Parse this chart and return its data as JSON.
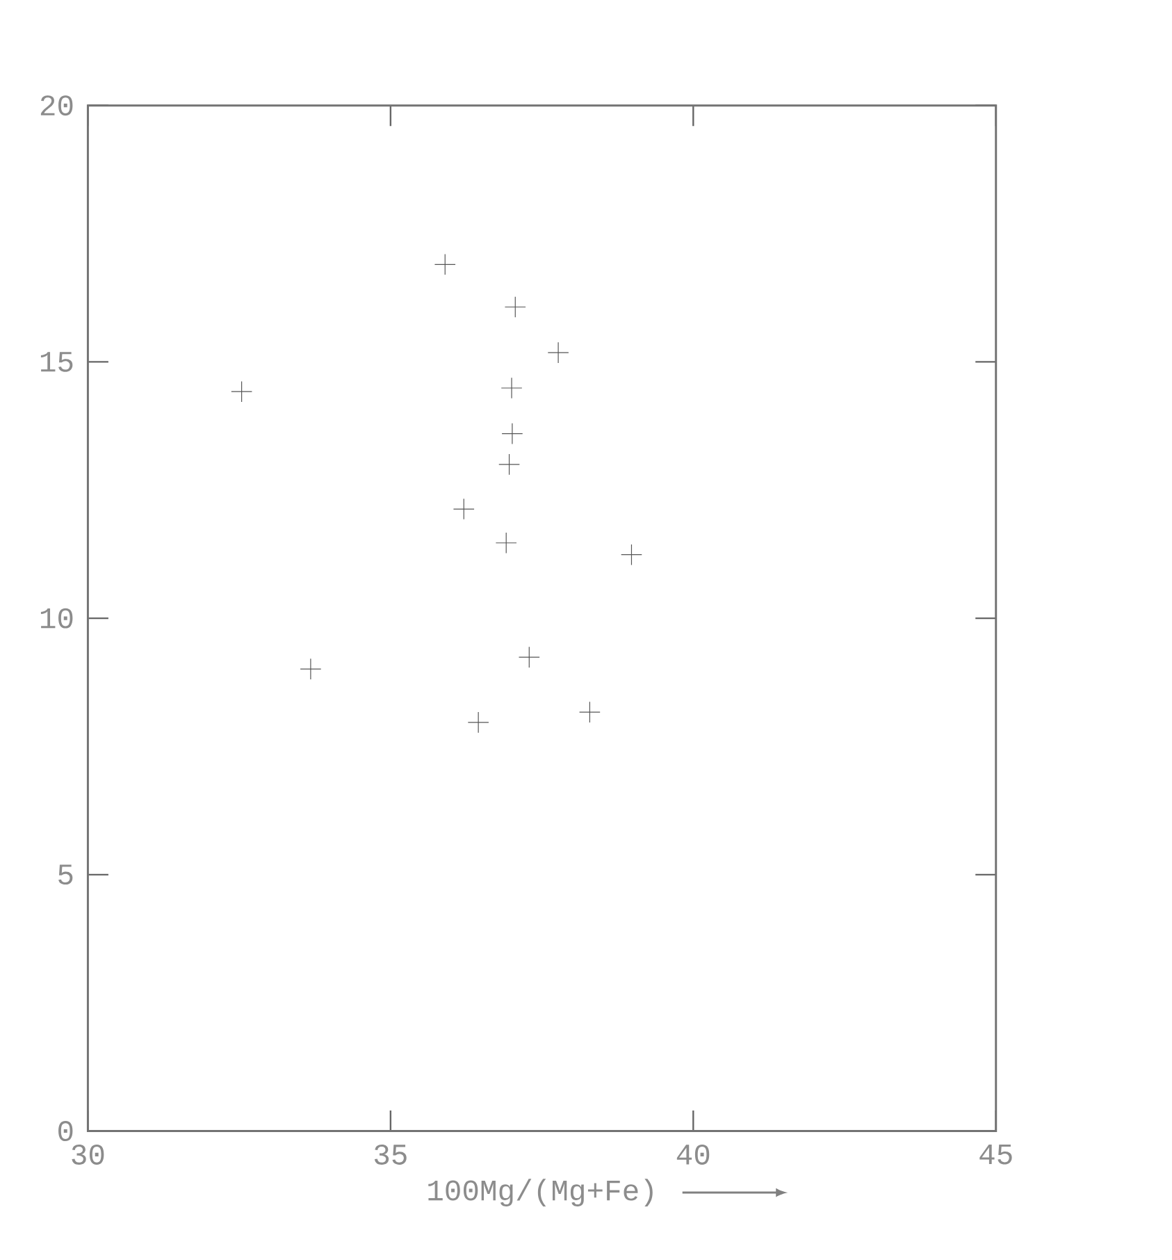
{
  "chart_data": {
    "type": "scatter",
    "xlabel": "100Mg/(Mg+Fe)",
    "x": [
      35.9,
      37.06,
      37.77,
      32.54,
      37.0,
      37.01,
      36.96,
      36.21,
      36.91,
      38.98,
      33.68,
      37.29,
      38.29,
      36.45
    ],
    "values": [
      16.9,
      16.07,
      15.18,
      14.42,
      14.49,
      13.6,
      13.0,
      12.13,
      11.47,
      11.24,
      9.01,
      9.24,
      8.17,
      7.97
    ],
    "color": "#555555",
    "marker": "cross",
    "xlim": [
      30,
      45
    ],
    "ylim": [
      0,
      20
    ],
    "xticks": [
      30,
      35,
      40,
      45
    ],
    "yticks": [
      0,
      5,
      10,
      15,
      20
    ]
  }
}
